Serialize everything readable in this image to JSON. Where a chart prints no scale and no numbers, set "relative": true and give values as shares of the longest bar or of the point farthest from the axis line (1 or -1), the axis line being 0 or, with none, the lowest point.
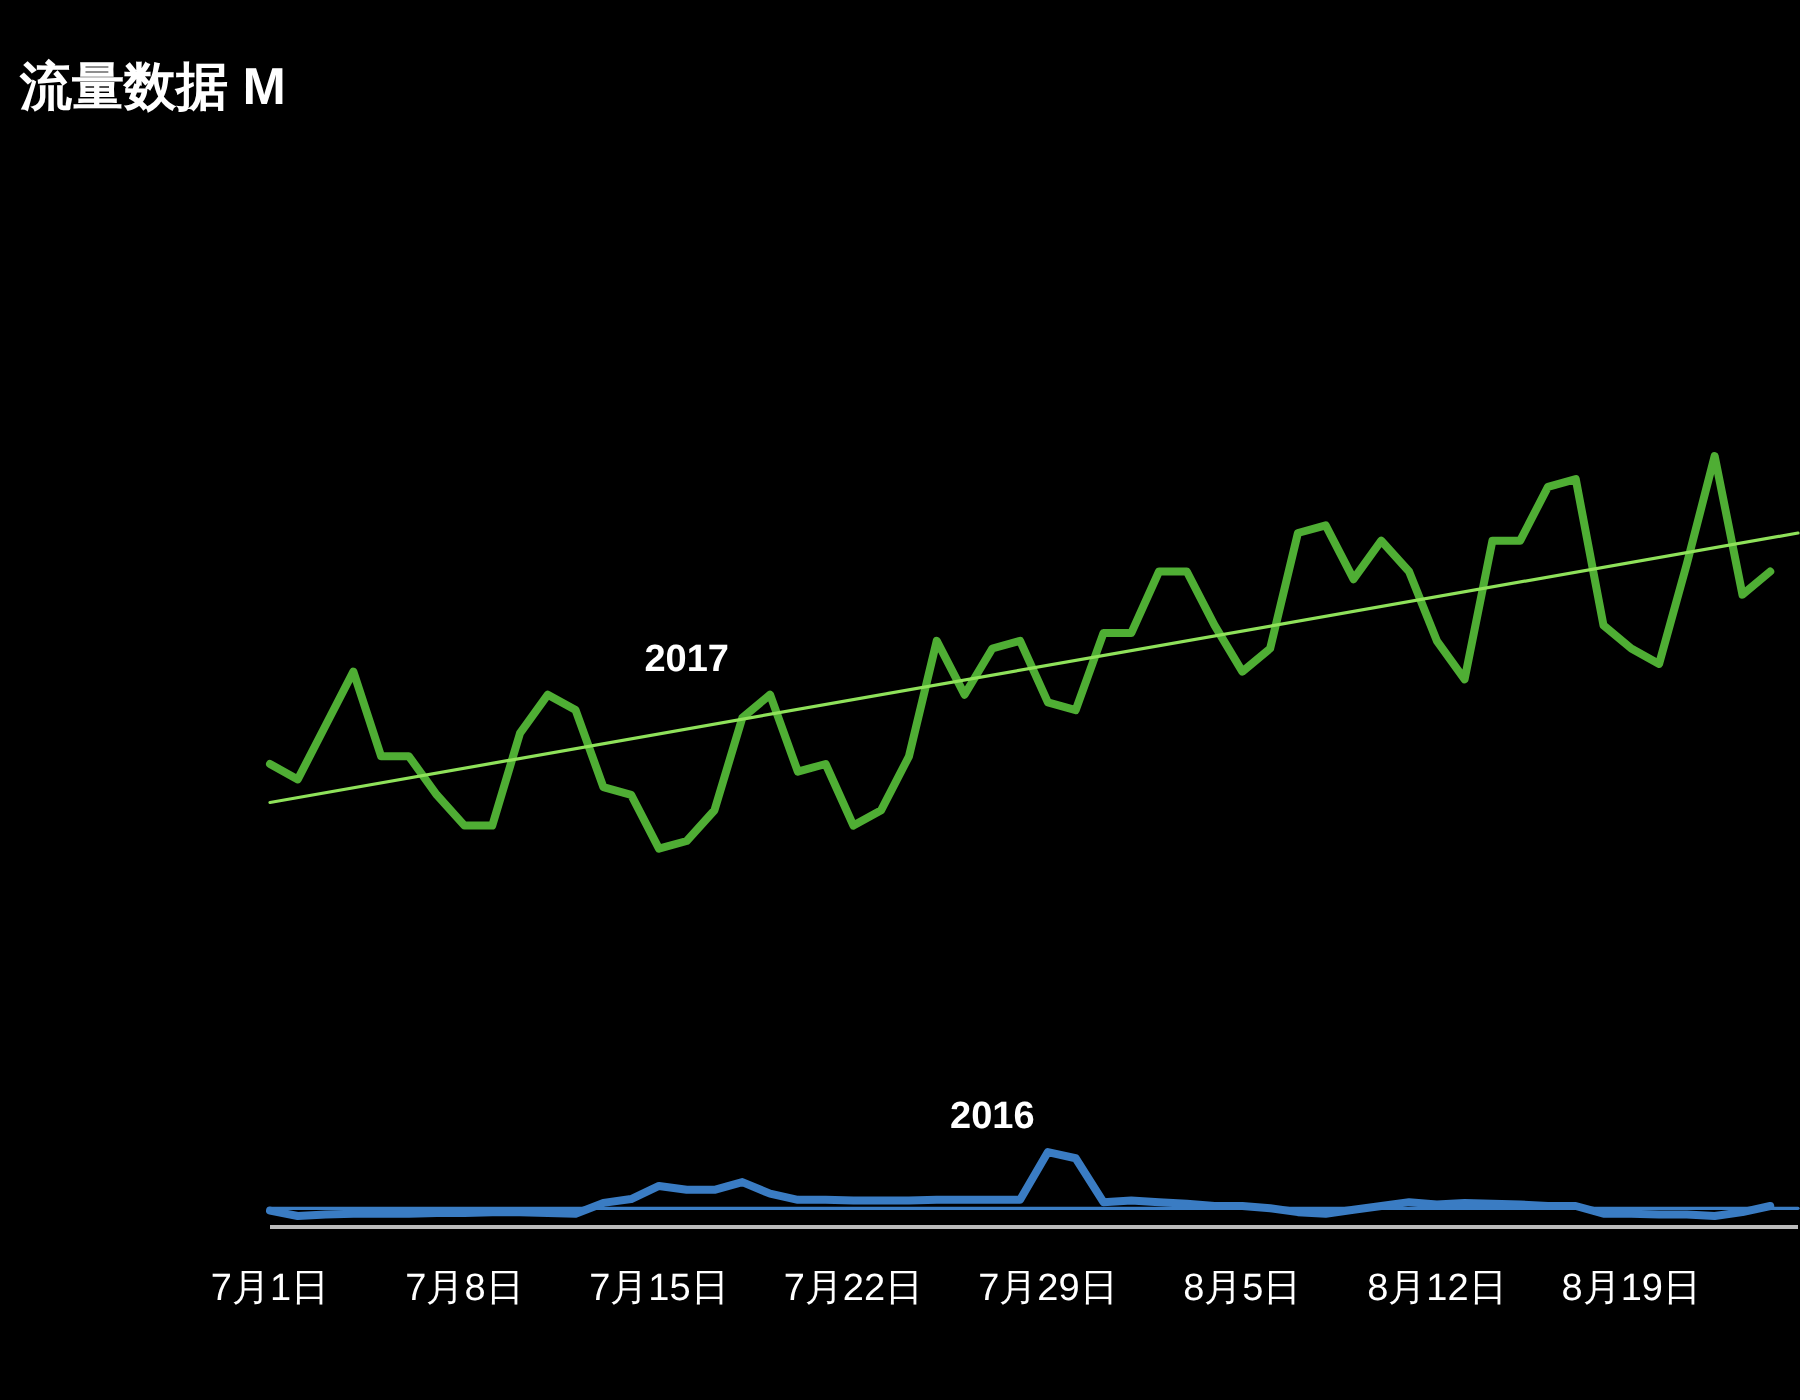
{
  "chart_data": {
    "type": "line",
    "title": "流量数据  M",
    "relative": true,
    "tick_labels": "x",
    "x": [
      "--07-01",
      "--07-02",
      "--07-03",
      "--07-04",
      "--07-05",
      "--07-06",
      "--07-07",
      "--07-08",
      "--07-09",
      "--07-10",
      "--07-11",
      "--07-12",
      "--07-13",
      "--07-14",
      "--07-15",
      "--07-16",
      "--07-17",
      "--07-18",
      "--07-19",
      "--07-20",
      "--07-21",
      "--07-22",
      "--07-23",
      "--07-24",
      "--07-25",
      "--07-26",
      "--07-27",
      "--07-28",
      "--07-29",
      "--07-30",
      "--07-31",
      "--08-01",
      "--08-02",
      "--08-03",
      "--08-04",
      "--08-05",
      "--08-06",
      "--08-07",
      "--08-08",
      "--08-09",
      "--08-10",
      "--08-11",
      "--08-12",
      "--08-13",
      "--08-14",
      "--08-15",
      "--08-16",
      "--08-17",
      "--08-18",
      "--08-19",
      "--08-20",
      "--08-21",
      "--08-22",
      "--08-23",
      "--08-24"
    ],
    "xlim": [
      "--07-01",
      "--08-25"
    ],
    "xticks": [
      {
        "value": "--07-01",
        "label": "7月1日"
      },
      {
        "value": "--07-08",
        "label": "7月8日"
      },
      {
        "value": "--07-15",
        "label": "7月15日"
      },
      {
        "value": "--07-22",
        "label": "7月22日"
      },
      {
        "value": "--07-29",
        "label": "7月29日"
      },
      {
        "value": "--08-05",
        "label": "8月5日"
      },
      {
        "value": "--08-12",
        "label": "8月12日"
      },
      {
        "value": "--08-19",
        "label": "8月19日"
      }
    ],
    "series": [
      {
        "name": "2017",
        "color": "#4fae34",
        "values": [
          0.6,
          0.58,
          0.65,
          0.72,
          0.61,
          0.61,
          0.56,
          0.52,
          0.52,
          0.64,
          0.69,
          0.67,
          0.57,
          0.56,
          0.49,
          0.5,
          0.54,
          0.66,
          0.69,
          0.59,
          0.6,
          0.52,
          0.54,
          0.61,
          0.76,
          0.69,
          0.75,
          0.76,
          0.68,
          0.67,
          0.77,
          0.77,
          0.85,
          0.85,
          0.78,
          0.72,
          0.75,
          0.9,
          0.91,
          0.84,
          0.89,
          0.85,
          0.76,
          0.71,
          0.89,
          0.89,
          0.96,
          0.97,
          0.78,
          0.75,
          0.73,
          0.86,
          1.0,
          0.82,
          0.85
        ]
      },
      {
        "name": "2016",
        "color": "#3a7cc3",
        "values": [
          0.02,
          0.013,
          0.015,
          0.016,
          0.016,
          0.016,
          0.017,
          0.017,
          0.018,
          0.018,
          0.017,
          0.016,
          0.03,
          0.035,
          0.052,
          0.047,
          0.047,
          0.057,
          0.042,
          0.034,
          0.034,
          0.033,
          0.033,
          0.033,
          0.034,
          0.034,
          0.034,
          0.034,
          0.096,
          0.088,
          0.031,
          0.033,
          0.031,
          0.029,
          0.026,
          0.026,
          0.023,
          0.018,
          0.016,
          0.021,
          0.026,
          0.031,
          0.028,
          0.03,
          0.029,
          0.028,
          0.026,
          0.026,
          0.016,
          0.016,
          0.015,
          0.015,
          0.013,
          0.018,
          0.026
        ]
      },
      {
        "type": "line",
        "color": "#8fe25a",
        "x": [
          "--07-01",
          "--08-25"
        ],
        "values": [
          0.55,
          0.9
        ]
      },
      {
        "type": "line",
        "color": "#3a7cc3",
        "x": [
          "--07-01",
          "--08-25"
        ],
        "values": [
          0.023,
          0.023
        ]
      }
    ]
  }
}
